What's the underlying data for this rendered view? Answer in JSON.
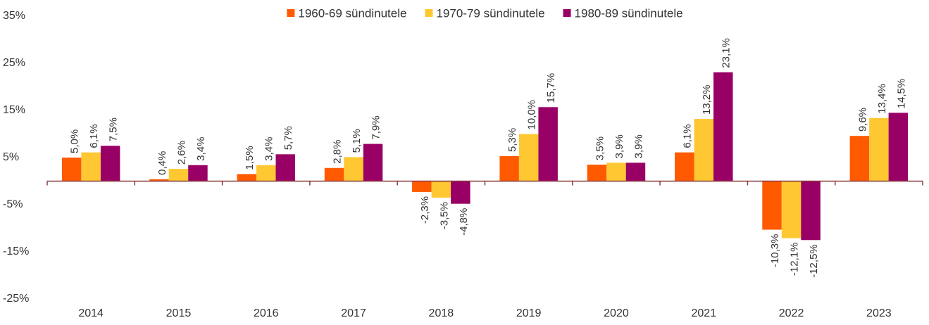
{
  "chart_data": {
    "type": "bar",
    "categories": [
      "2014",
      "2015",
      "2016",
      "2017",
      "2018",
      "2019",
      "2020",
      "2021",
      "2022",
      "2023"
    ],
    "series": [
      {
        "name": "1960-69 sündinutele",
        "color": "#ff5a00",
        "values": [
          5.0,
          0.4,
          1.5,
          2.8,
          -2.3,
          5.3,
          3.5,
          6.1,
          -10.3,
          9.6
        ],
        "value_labels": [
          "5,0%",
          "0,4%",
          "1,5%",
          "2,8%",
          "-2,3%",
          "5,3%",
          "3,5%",
          "6,1%",
          "-10,3%",
          "9,6%"
        ]
      },
      {
        "name": "1970-79 sündinutele",
        "color": "#ffc833",
        "values": [
          6.1,
          2.6,
          3.4,
          5.1,
          -3.5,
          10.0,
          3.9,
          13.2,
          -12.1,
          13.4
        ],
        "value_labels": [
          "6,1%",
          "2,6%",
          "3,4%",
          "5,1%",
          "-3,5%",
          "10,0%",
          "3,9%",
          "13,2%",
          "-12,1%",
          "13,4%"
        ]
      },
      {
        "name": "1980-89 sündinutele",
        "color": "#990066",
        "values": [
          7.5,
          3.4,
          5.7,
          7.9,
          -4.8,
          15.7,
          3.9,
          23.1,
          -12.5,
          14.5
        ],
        "value_labels": [
          "7,5%",
          "3,4%",
          "5,7%",
          "7,9%",
          "-4,8%",
          "15,7%",
          "3,9%",
          "23,1%",
          "-12,5%",
          "14,5%"
        ]
      }
    ],
    "ylim": [
      -25,
      35
    ],
    "yticks": [
      {
        "value": -25,
        "label": "-25%"
      },
      {
        "value": -15,
        "label": "-15%"
      },
      {
        "value": -5,
        "label": "-5%"
      },
      {
        "value": 5,
        "label": "5%"
      },
      {
        "value": 15,
        "label": "15%"
      },
      {
        "value": 25,
        "label": "25%"
      },
      {
        "value": 35,
        "label": "35%"
      }
    ],
    "legend": "top"
  }
}
